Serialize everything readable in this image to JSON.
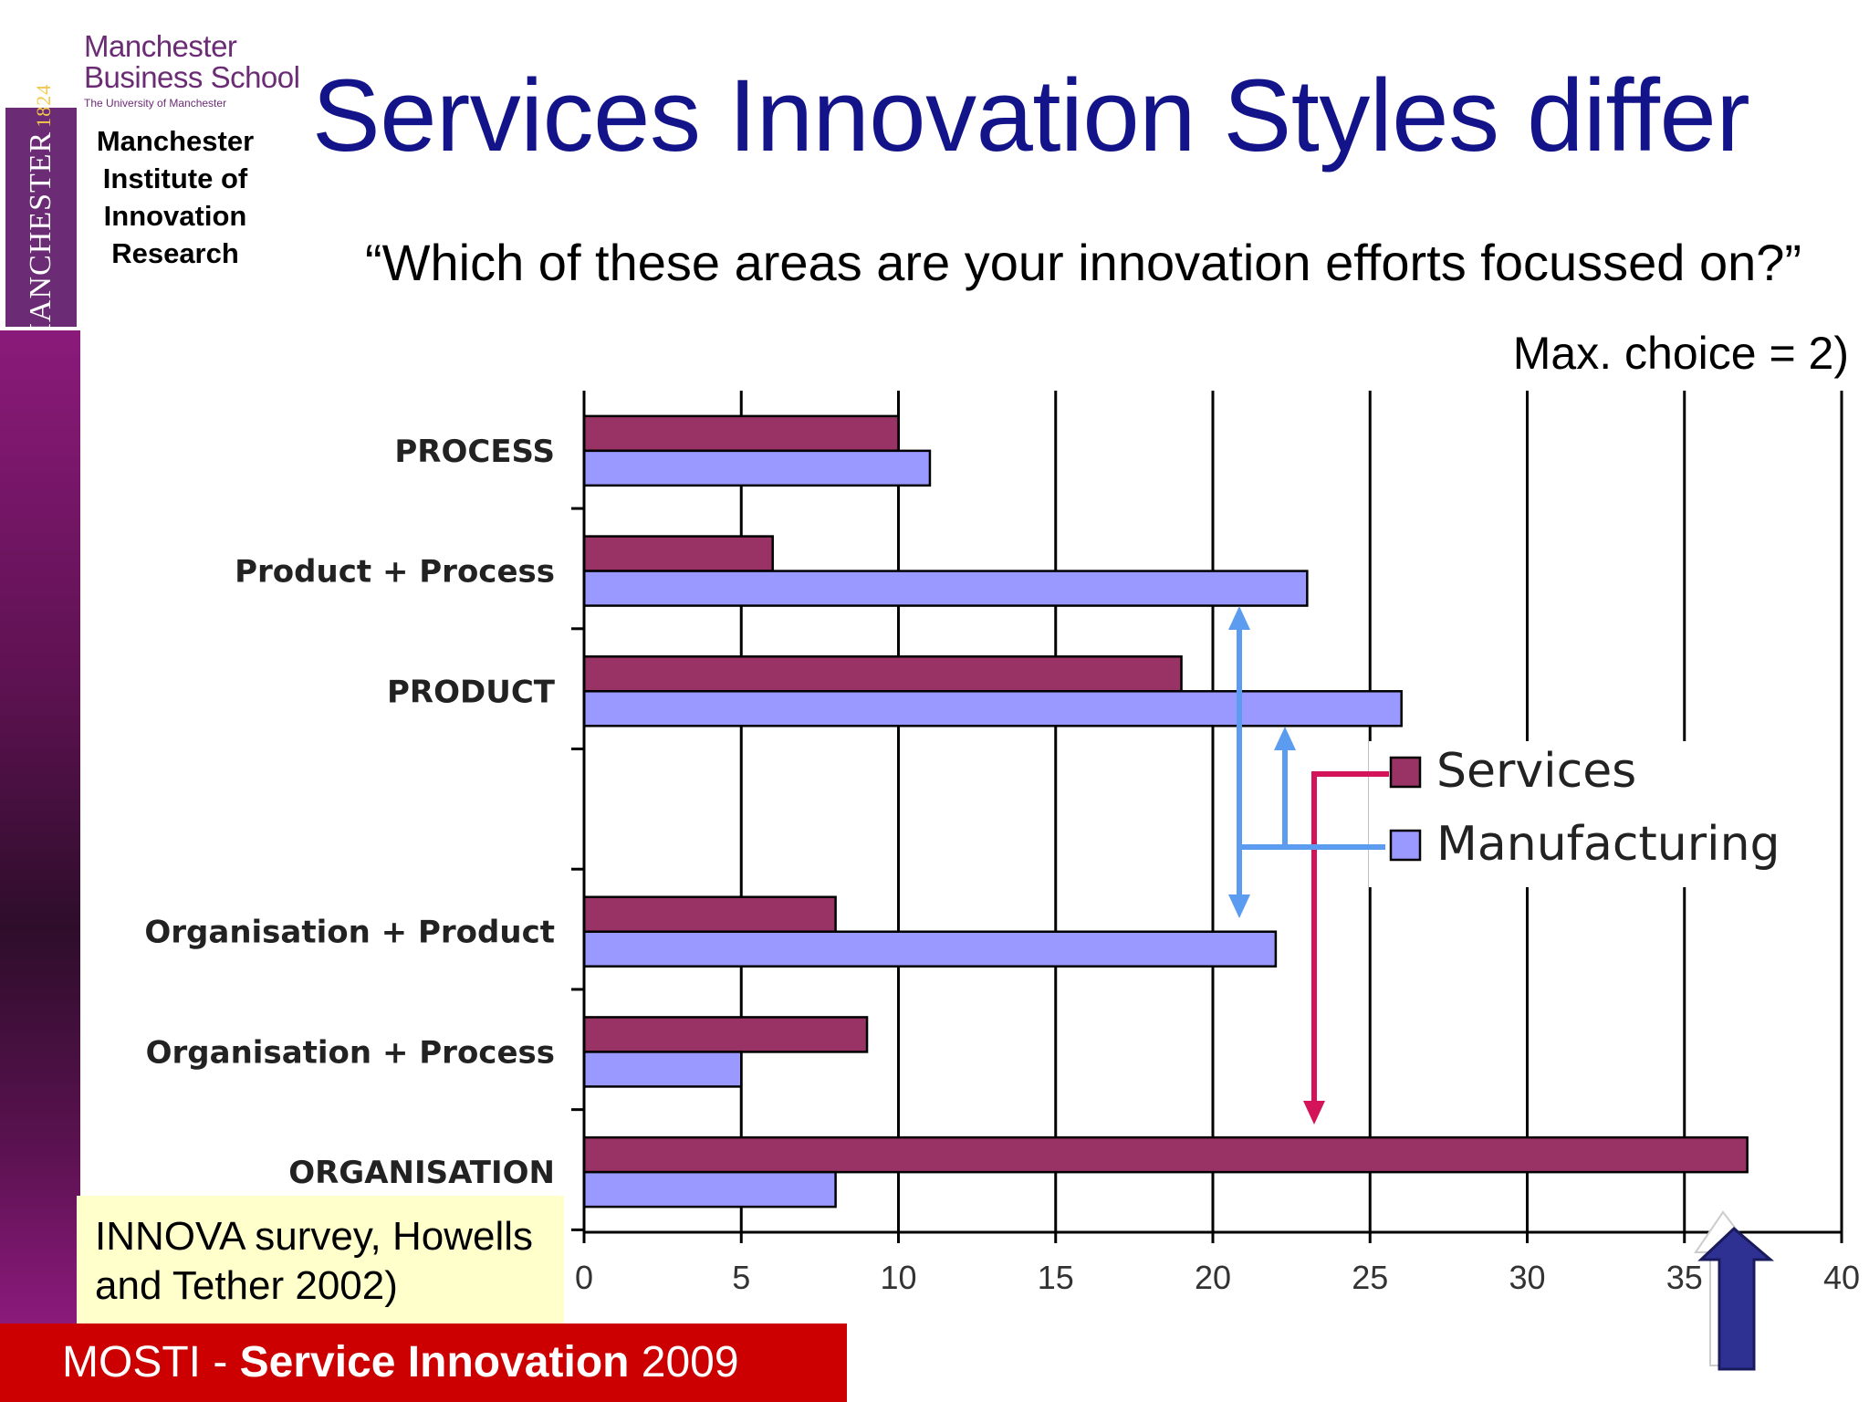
{
  "header": {
    "logo": {
      "line1": "Manchester",
      "line2": "Business School",
      "line3": "The University of Manchester"
    },
    "seal": {
      "word": "MANCHESTER",
      "year": "1824"
    },
    "institute": [
      "Manchester",
      "Institute of",
      "Innovation",
      "Research"
    ],
    "title": "Services Innovation Styles differ",
    "question": "“Which of these areas are your innovation efforts focussed on?”",
    "note": "Max. choice = 2)"
  },
  "chart_data": {
    "type": "bar",
    "orientation": "horizontal",
    "categories": [
      "PROCESS",
      "Product + Process",
      "PRODUCT",
      "",
      "Organisation + Product",
      "Organisation + Process",
      "ORGANISATION"
    ],
    "series": [
      {
        "name": "Services",
        "color": "#993366",
        "values": [
          10,
          6,
          19,
          null,
          8,
          9,
          37
        ]
      },
      {
        "name": "Manufacturing",
        "color": "#9999ff",
        "values": [
          11,
          23,
          26,
          null,
          22,
          5,
          8
        ]
      }
    ],
    "x_ticks": [
      "0",
      "5",
      "10",
      "15",
      "20",
      "25",
      "30",
      "35",
      "40"
    ],
    "xlim": [
      0,
      40
    ],
    "grid": "vertical",
    "legend": "right"
  },
  "source": "INNOVA survey, Howells and Tether 2002)",
  "footer": {
    "prefix": "MOSTI - ",
    "bold": "Service Innovation",
    "suffix": " 2009"
  },
  "colors": {
    "title": "#14148a",
    "services": "#993366",
    "manufacturing": "#9999ff",
    "arrow_blue": "#5b9bf0",
    "arrow_magenta": "#d4145a",
    "footer": "#cc0000",
    "source_bg": "#ffffcc"
  },
  "icons": {
    "nav": "up-arrow-icon"
  }
}
